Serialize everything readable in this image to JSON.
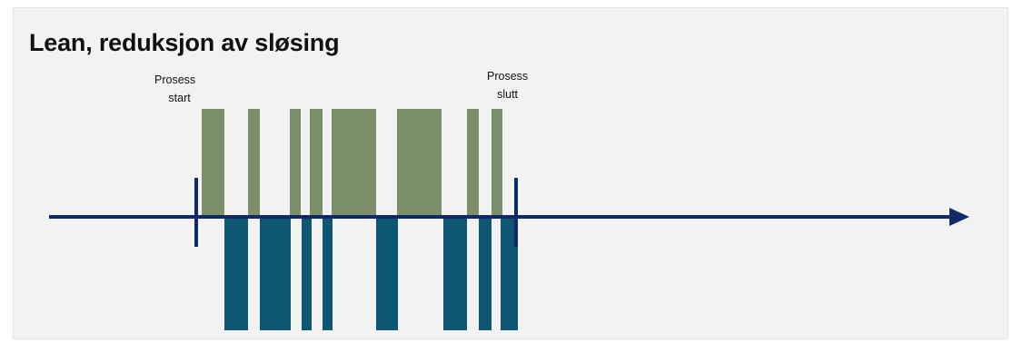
{
  "title": "Lean, reduksjon av sløsing",
  "labels": {
    "start": [
      "Prosess",
      "start"
    ],
    "end": [
      "Prosess",
      "slutt"
    ]
  },
  "colors": {
    "value_adding": "#7b8f68",
    "waste": "#0e5773",
    "timeline": "#0f2a66",
    "background": "#f2f2f2"
  }
}
